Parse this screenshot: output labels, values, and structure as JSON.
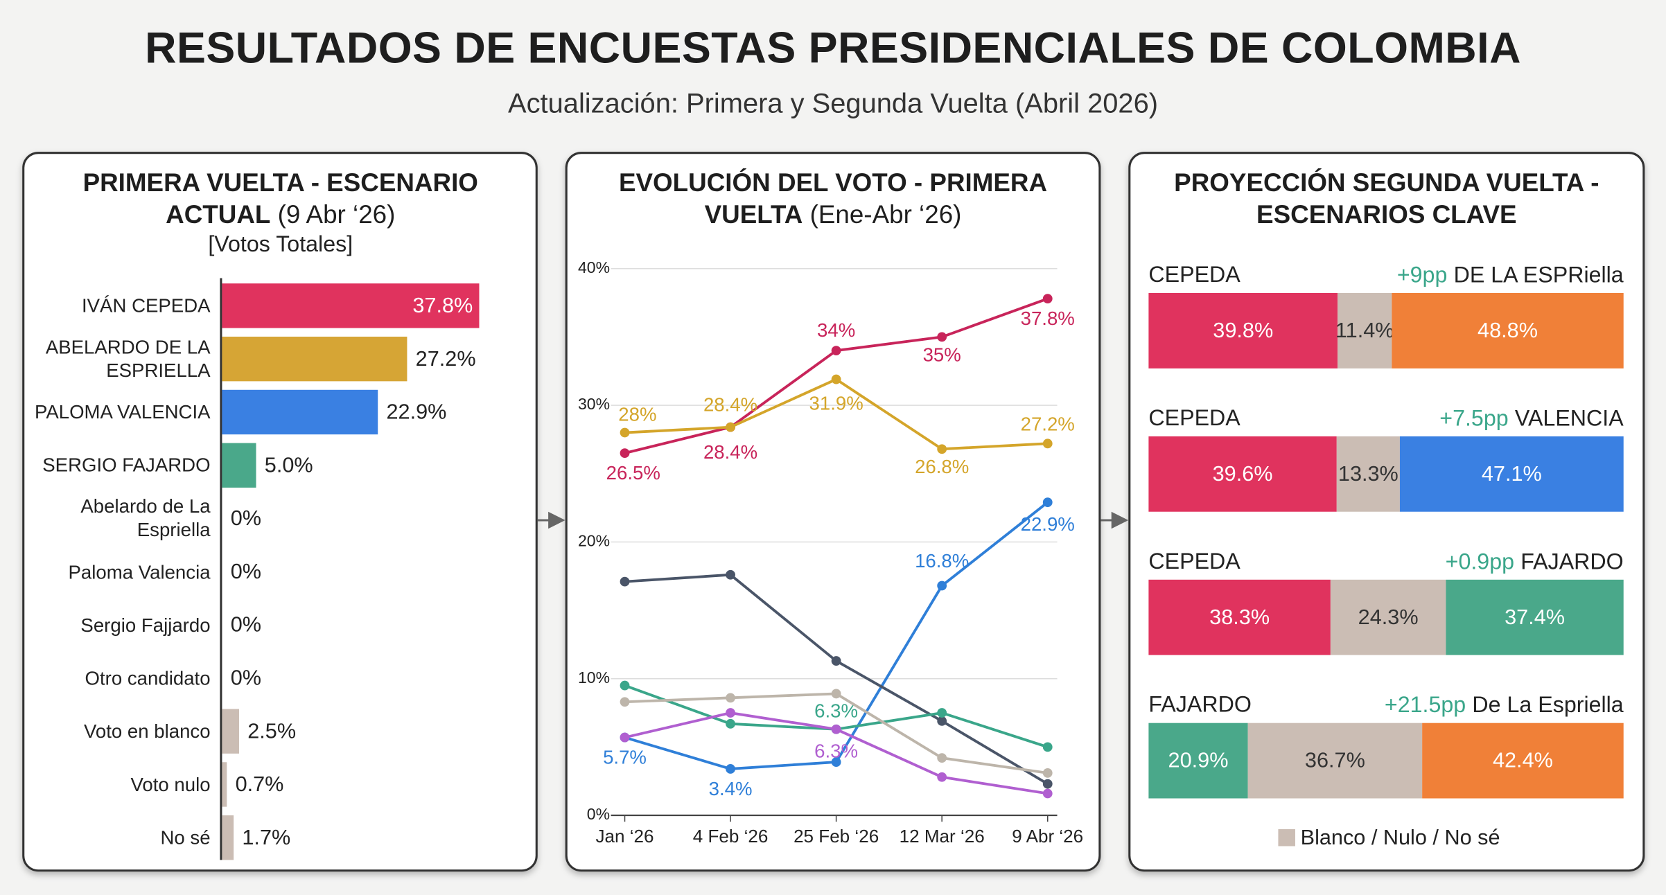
{
  "header": {
    "title": "RESULTADOS DE ENCUESTAS PRESIDENCIALES DE COLOMBIA",
    "subtitle": "Actualización: Primera y Segunda Vuelta (Abril 2026)"
  },
  "chart_data": [
    {
      "type": "hbar",
      "title": "PRIMERA VUELTA - ESCENARIO ACTUAL",
      "subtitle": "(9 Abr ‘26)",
      "note": "[Votos Totales]",
      "categories": [
        "IVÁN CEPEDA",
        "ABELARDO DE LA ESPRIELLA",
        "PALOMA VALENCIA",
        "SERGIO FAJARDO",
        "Abelardo de La Espriella",
        "Paloma Valencia",
        "Sergio Fajjardo",
        "Otro candidato",
        "Voto en blanco",
        "Voto nulo",
        "No sé"
      ],
      "values": [
        37.8,
        27.2,
        22.9,
        5.0,
        0,
        0,
        0,
        0,
        2.5,
        0.7,
        1.7
      ],
      "value_labels": [
        "37.8%",
        "27.2%",
        "22.9%",
        "5.0%",
        "0%",
        "0%",
        "0%",
        "0%",
        "2.5%",
        "0.7%",
        "1.7%"
      ],
      "colors": [
        "#e0335e",
        "#d6a535",
        "#3a80e2",
        "#4aa88a",
        "#cbbdb4",
        "#cbbdb4",
        "#cbbdb4",
        "#cbbdb4",
        "#cbbdb4",
        "#cbbdb4",
        "#cbbdb4"
      ]
    },
    {
      "type": "line",
      "title": "EVOLUCIÓN DEL VOTO - PRIMERA VUELTA",
      "subtitle": "(Ene-Abr ‘26)",
      "categories": [
        "Jan ‘26",
        "4 Feb ‘26",
        "25 Feb ‘26",
        "12 Mar ‘26",
        "9 Abr ‘26"
      ],
      "ylim": [
        0,
        40
      ],
      "yticks": [
        {
          "value": 0,
          "label": "0%"
        },
        {
          "value": 10,
          "label": "10%"
        },
        {
          "value": 20,
          "label": "20%"
        },
        {
          "value": 30,
          "label": "30%"
        },
        {
          "value": 40,
          "label": "40%"
        }
      ],
      "grid": true,
      "series": [
        {
          "color": "#c8245a",
          "values": [
            26.5,
            28.4,
            34,
            35,
            37.8
          ],
          "value_labels": [
            "26.5%",
            "28.4%",
            "34%",
            "35%",
            "37.8%"
          ]
        },
        {
          "color": "#d4a52a",
          "values": [
            28,
            28.4,
            31.9,
            26.8,
            27.2
          ],
          "value_labels": [
            "28%",
            "28.4%",
            "31.9%",
            "26.8%",
            "27.2%"
          ]
        },
        {
          "color": "#2f7fd8",
          "values": [
            5.7,
            3.4,
            3.9,
            16.8,
            22.9
          ],
          "value_labels": [
            "5.7%",
            "3.4%",
            null,
            "16.8%",
            "22.9%"
          ]
        },
        {
          "color": "#4a5568",
          "values": [
            17.1,
            17.6,
            11.3,
            6.9,
            2.3
          ]
        },
        {
          "color": "#3aa68a",
          "values": [
            9.5,
            6.7,
            6.3,
            7.5,
            5.0
          ],
          "value_labels": [
            null,
            null,
            "6.3%",
            null,
            null
          ]
        },
        {
          "color": "#bdb5aa",
          "values": [
            8.3,
            8.6,
            8.9,
            4.2,
            3.1
          ]
        },
        {
          "color": "#b05fd0",
          "values": [
            5.7,
            7.5,
            6.3,
            2.8,
            1.6
          ],
          "value_labels": [
            null,
            null,
            "6.3%",
            null,
            null
          ]
        }
      ]
    },
    {
      "type": "stacked_hbar",
      "title": "PROYECCIÓN SEGUNDA VUELTA - ESCENARIOS CLAVE",
      "margin_color": "#3aa68a",
      "rows": [
        {
          "left": "CEPEDA",
          "margin": "+9pp",
          "right": "DE LA ESPRiella",
          "values": [
            39.8,
            11.4,
            48.8
          ],
          "value_labels": [
            "39.8%",
            "11.4%",
            "48.8%"
          ],
          "colors": [
            "#e0335e",
            "#cbbdb4",
            "#f08038"
          ]
        },
        {
          "left": "CEPEDA",
          "margin": "+7.5pp",
          "right": "VALENCIA",
          "values": [
            39.6,
            13.3,
            47.1
          ],
          "value_labels": [
            "39.6%",
            "13.3%",
            "47.1%"
          ],
          "colors": [
            "#e0335e",
            "#cbbdb4",
            "#3a80e2"
          ]
        },
        {
          "left": "CEPEDA",
          "margin": "+0.9pp",
          "right": "FAJARDO",
          "values": [
            38.3,
            24.3,
            37.4
          ],
          "value_labels": [
            "38.3%",
            "24.3%",
            "37.4%"
          ],
          "colors": [
            "#e0335e",
            "#cbbdb4",
            "#4aa88a"
          ]
        },
        {
          "left": "FAJARDO",
          "margin": "+21.5pp",
          "right": "De La Espriella",
          "values": [
            20.9,
            36.7,
            42.4
          ],
          "value_labels": [
            "20.9%",
            "36.7%",
            "42.4%"
          ],
          "colors": [
            "#4aa88a",
            "#cbbdb4",
            "#f08038"
          ]
        }
      ],
      "legend": [
        {
          "name": "Blanco / Nulo / No sé",
          "color": "#cbbdb4"
        }
      ]
    }
  ]
}
